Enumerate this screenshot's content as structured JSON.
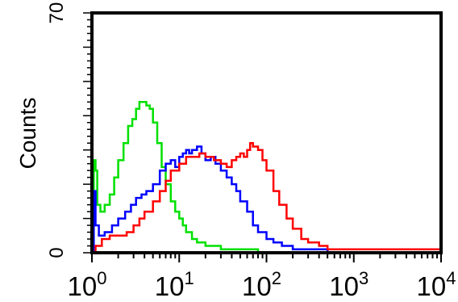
{
  "chart_data": {
    "type": "line",
    "title": "",
    "xlabel": "",
    "ylabel": "Counts",
    "xscale": "log",
    "xlim": [
      1,
      10000
    ],
    "ylim": [
      0,
      70
    ],
    "y_tick_labels": [
      "0",
      "70"
    ],
    "x_tick_labels": [
      {
        "base": "10",
        "exp": "0",
        "value": 1
      },
      {
        "base": "10",
        "exp": "1",
        "value": 10
      },
      {
        "base": "10",
        "exp": "2",
        "value": 100
      },
      {
        "base": "10",
        "exp": "3",
        "value": 1000
      },
      {
        "base": "10",
        "exp": "4",
        "value": 10000
      }
    ],
    "grid": false,
    "legend": "none",
    "series": [
      {
        "color": "#00e000",
        "x": [
          1.0,
          1.05,
          1.1,
          1.15,
          1.25,
          1.4,
          1.6,
          1.8,
          2.0,
          2.3,
          2.6,
          2.9,
          3.2,
          3.5,
          3.8,
          4.2,
          4.6,
          5.0,
          5.6,
          6.3,
          7.0,
          8.0,
          9.0,
          10,
          11,
          12,
          14,
          16,
          20,
          25,
          30,
          40,
          50,
          60,
          80,
          100,
          130,
          160,
          200,
          300,
          500,
          1000,
          2000,
          5000,
          10000
        ],
        "values": [
          0,
          27,
          24,
          14,
          12,
          14,
          17,
          22,
          27,
          32,
          37,
          39,
          42,
          44,
          44,
          43,
          42,
          38,
          32,
          25,
          20,
          15,
          12,
          10,
          8,
          6,
          4,
          3,
          2,
          2,
          1,
          1,
          1,
          1,
          0,
          0,
          0,
          0,
          0,
          0,
          0,
          0,
          0,
          0,
          0
        ]
      },
      {
        "color": "#0000ff",
        "x": [
          1.0,
          1.05,
          1.1,
          1.2,
          1.4,
          1.7,
          2.0,
          2.4,
          2.8,
          3.2,
          3.7,
          4.2,
          5.0,
          6.0,
          7.0,
          8.0,
          9.0,
          10,
          11,
          12,
          13,
          14,
          16,
          18,
          20,
          23,
          26,
          30,
          35,
          40,
          45,
          50,
          60,
          70,
          80,
          100,
          120,
          150,
          200,
          300,
          500,
          1000,
          10000
        ],
        "values": [
          0,
          18,
          8,
          5,
          6,
          8,
          10,
          12,
          14,
          16,
          17,
          18,
          20,
          24,
          26,
          27,
          25,
          28,
          29,
          30,
          29,
          30,
          31,
          29,
          27,
          28,
          26,
          24,
          22,
          20,
          18,
          15,
          12,
          8,
          6,
          4,
          3,
          2,
          1,
          1,
          0,
          0,
          0
        ]
      },
      {
        "color": "#ff0000",
        "x": [
          1.0,
          1.1,
          1.3,
          1.6,
          2.0,
          2.5,
          3.0,
          3.5,
          4.0,
          5.0,
          6.0,
          7.0,
          8.0,
          10,
          12,
          14,
          17,
          20,
          25,
          30,
          35,
          40,
          45,
          50,
          55,
          60,
          65,
          70,
          80,
          90,
          100,
          120,
          140,
          170,
          200,
          250,
          300,
          400,
          500,
          700,
          1000,
          2000,
          5000,
          10000
        ],
        "values": [
          0,
          2,
          4,
          5,
          5,
          6,
          8,
          10,
          12,
          15,
          18,
          21,
          24,
          26,
          28,
          28,
          29,
          28,
          27,
          26,
          25,
          27,
          28,
          29,
          28,
          30,
          32,
          31,
          30,
          27,
          24,
          18,
          14,
          10,
          7,
          4,
          3,
          2,
          1,
          1,
          1,
          1,
          1,
          0
        ]
      }
    ]
  }
}
